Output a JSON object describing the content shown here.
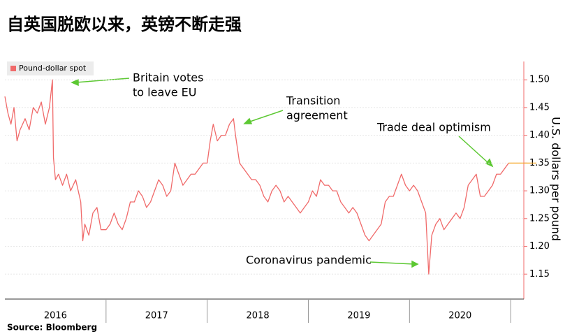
{
  "chart_data": {
    "type": "line",
    "title": "自英国脱欧以来，英镑不断走强",
    "source": "Source: Bloomberg",
    "y_label": "U.S. dollars per pound",
    "legend": "top-left",
    "series": [
      {
        "name": "Pound-dollar spot",
        "color": "#f06a6a",
        "x": [
          2016.0,
          2016.03,
          2016.06,
          2016.09,
          2016.12,
          2016.15,
          2016.2,
          2016.24,
          2016.28,
          2016.32,
          2016.36,
          2016.4,
          2016.44,
          2016.47,
          2016.48,
          2016.5,
          2016.53,
          2016.57,
          2016.61,
          2016.65,
          2016.7,
          2016.75,
          2016.77,
          2016.79,
          2016.83,
          2016.87,
          2016.91,
          2016.95,
          2017.0,
          2017.04,
          2017.08,
          2017.12,
          2017.16,
          2017.2,
          2017.24,
          2017.28,
          2017.32,
          2017.36,
          2017.4,
          2017.44,
          2017.48,
          2017.52,
          2017.56,
          2017.6,
          2017.64,
          2017.68,
          2017.72,
          2017.76,
          2017.8,
          2017.84,
          2017.88,
          2017.92,
          2017.96,
          2018.0,
          2018.03,
          2018.06,
          2018.1,
          2018.14,
          2018.18,
          2018.22,
          2018.26,
          2018.28,
          2018.32,
          2018.36,
          2018.4,
          2018.44,
          2018.48,
          2018.52,
          2018.56,
          2018.6,
          2018.64,
          2018.68,
          2018.72,
          2018.76,
          2018.8,
          2018.84,
          2018.88,
          2018.92,
          2018.96,
          2019.0,
          2019.04,
          2019.08,
          2019.12,
          2019.16,
          2019.2,
          2019.24,
          2019.28,
          2019.32,
          2019.36,
          2019.4,
          2019.44,
          2019.48,
          2019.52,
          2019.56,
          2019.6,
          2019.64,
          2019.68,
          2019.72,
          2019.76,
          2019.8,
          2019.84,
          2019.88,
          2019.92,
          2019.96,
          2020.0,
          2020.04,
          2020.08,
          2020.12,
          2020.16,
          2020.19,
          2020.22,
          2020.26,
          2020.3,
          2020.34,
          2020.38,
          2020.42,
          2020.46,
          2020.5,
          2020.54,
          2020.58,
          2020.62,
          2020.66,
          2020.7,
          2020.74,
          2020.78,
          2020.82,
          2020.86,
          2020.9,
          2020.94,
          2020.98
        ],
        "values": [
          1.47,
          1.44,
          1.42,
          1.45,
          1.39,
          1.41,
          1.43,
          1.41,
          1.45,
          1.44,
          1.46,
          1.42,
          1.45,
          1.5,
          1.36,
          1.32,
          1.33,
          1.31,
          1.33,
          1.3,
          1.32,
          1.28,
          1.21,
          1.24,
          1.22,
          1.26,
          1.27,
          1.23,
          1.23,
          1.24,
          1.26,
          1.24,
          1.23,
          1.25,
          1.28,
          1.28,
          1.3,
          1.29,
          1.27,
          1.28,
          1.3,
          1.32,
          1.31,
          1.29,
          1.3,
          1.35,
          1.33,
          1.31,
          1.32,
          1.33,
          1.33,
          1.34,
          1.35,
          1.35,
          1.39,
          1.42,
          1.39,
          1.4,
          1.4,
          1.42,
          1.43,
          1.4,
          1.35,
          1.34,
          1.33,
          1.32,
          1.32,
          1.31,
          1.29,
          1.28,
          1.3,
          1.31,
          1.3,
          1.28,
          1.29,
          1.28,
          1.27,
          1.26,
          1.27,
          1.28,
          1.3,
          1.29,
          1.32,
          1.31,
          1.31,
          1.3,
          1.3,
          1.28,
          1.27,
          1.26,
          1.27,
          1.26,
          1.24,
          1.22,
          1.21,
          1.22,
          1.23,
          1.24,
          1.28,
          1.29,
          1.29,
          1.31,
          1.33,
          1.31,
          1.3,
          1.31,
          1.3,
          1.28,
          1.26,
          1.15,
          1.22,
          1.24,
          1.25,
          1.23,
          1.24,
          1.25,
          1.26,
          1.25,
          1.27,
          1.31,
          1.32,
          1.33,
          1.29,
          1.29,
          1.3,
          1.31,
          1.33,
          1.33,
          1.34,
          1.35
        ]
      }
    ],
    "xlim": [
      2016.0,
      2021.13
    ],
    "x_separators": [
      2017,
      2018,
      2019,
      2020,
      2021
    ],
    "year_labels": [
      "2016",
      "2017",
      "2018",
      "2019",
      "2020"
    ],
    "ylim": [
      1.105,
      1.533
    ],
    "yticks": [
      {
        "value": 1.15,
        "label": "1.15"
      },
      {
        "value": 1.2,
        "label": "1.20"
      },
      {
        "value": 1.25,
        "label": "1.25"
      },
      {
        "value": 1.3,
        "label": "1.30"
      },
      {
        "value": 1.35,
        "label": "1.35"
      },
      {
        "value": 1.4,
        "label": "1.40"
      },
      {
        "value": 1.45,
        "label": "1.45"
      },
      {
        "value": 1.5,
        "label": "1.50"
      }
    ],
    "grid": true,
    "annotations": [
      {
        "lines": [
          "Britain votes",
          "to leave EU"
        ]
      },
      {
        "lines": [
          "Transition",
          "agreement"
        ]
      },
      {
        "lines": [
          "Trade deal optimism"
        ]
      },
      {
        "lines": [
          "Coronavirus pandemic"
        ]
      }
    ]
  }
}
